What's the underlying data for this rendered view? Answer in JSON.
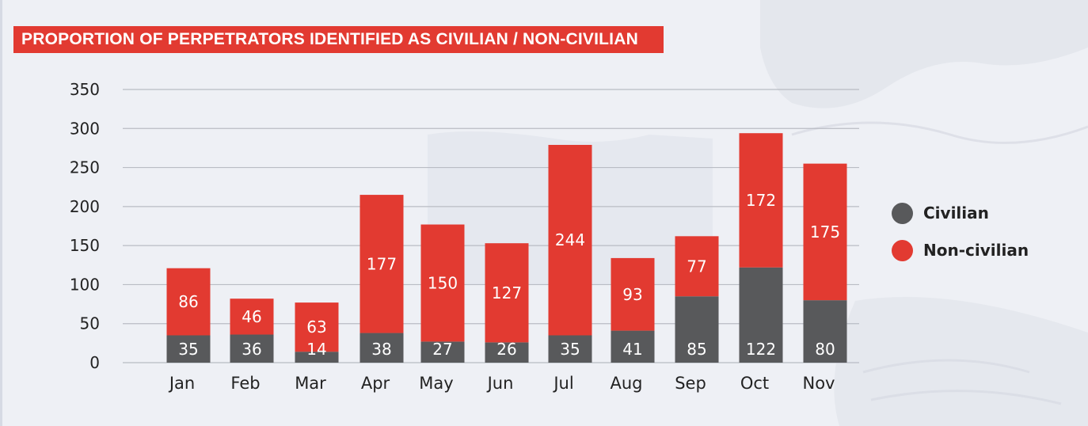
{
  "title": "PROPORTION OF PERPETRATORS IDENTIFIED AS CIVILIAN / NON-CIVILIAN",
  "colors": {
    "civilian": "#58595b",
    "non_civilian": "#e23a31",
    "grid": "#b9bcc4",
    "banner": "#e23a31"
  },
  "legend": [
    {
      "label": "Civilian",
      "color": "#58595b"
    },
    {
      "label": "Non-civilian",
      "color": "#e23a31"
    }
  ],
  "chart_data": {
    "type": "bar",
    "stacked": true,
    "title": "PROPORTION OF PERPETRATORS IDENTIFIED AS CIVILIAN / NON-CIVILIAN",
    "xlabel": "",
    "ylabel": "",
    "ylim": [
      0,
      350
    ],
    "yticks": [
      0,
      50,
      100,
      150,
      200,
      250,
      300,
      350
    ],
    "grid": true,
    "legend_position": "right",
    "categories": [
      "Jan",
      "Feb",
      "Mar",
      "Apr",
      "May",
      "Jun",
      "Jul",
      "Aug",
      "Sep",
      "Oct",
      "Nov"
    ],
    "series": [
      {
        "name": "Civilian",
        "values": [
          35,
          36,
          14,
          38,
          27,
          26,
          35,
          41,
          85,
          122,
          80
        ]
      },
      {
        "name": "Non-civilian",
        "values": [
          86,
          46,
          63,
          177,
          150,
          127,
          244,
          93,
          77,
          172,
          175
        ]
      }
    ]
  }
}
